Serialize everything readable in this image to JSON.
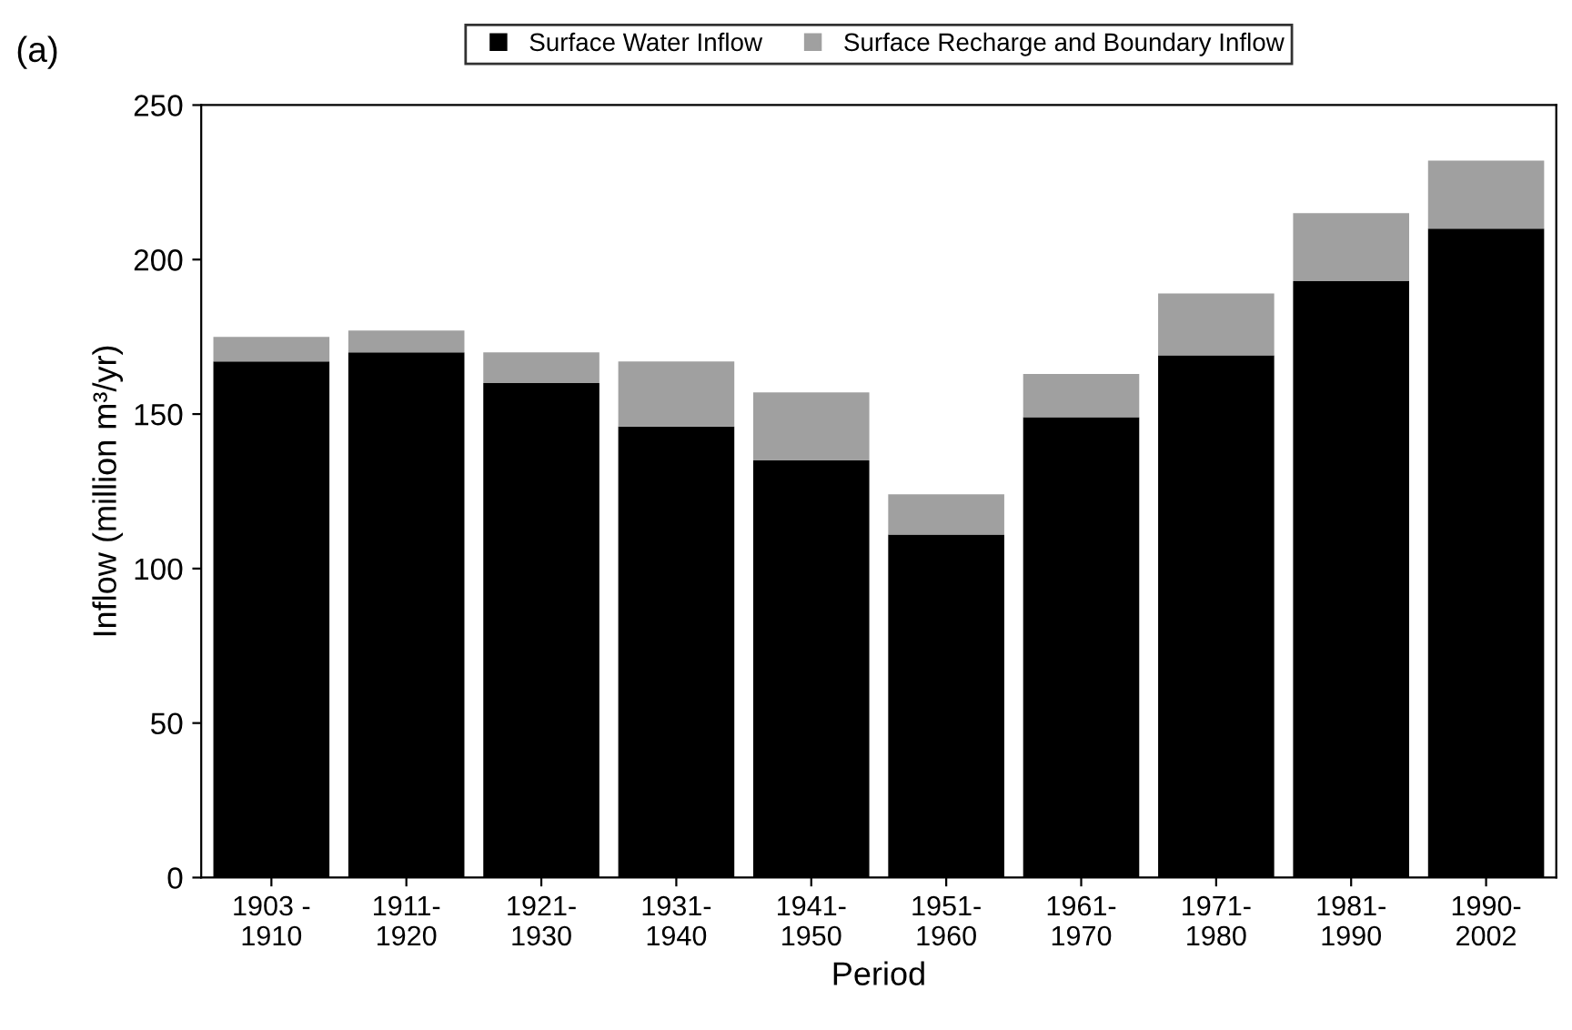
{
  "chart_data": {
    "type": "bar",
    "stacked": true,
    "xlabel": "Period",
    "ylabel": "Inflow (million m³/yr)",
    "annotations": [
      "(a)"
    ],
    "categories": [
      "1903 -\n1910",
      "1911-\n1920",
      "1921-\n1930",
      "1931-\n1940",
      "1941-\n1950",
      "1951-\n1960",
      "1961-\n1970",
      "1971-\n1980",
      "1981-\n1990",
      "1990-\n2002"
    ],
    "series": [
      {
        "name": "Surface Water Inflow",
        "color": "#000000",
        "values": [
          167,
          170,
          160,
          146,
          135,
          111,
          149,
          169,
          193,
          210
        ]
      },
      {
        "name": "Surface Recharge and Boundary Inflow",
        "color": "#a0a0a0",
        "values": [
          8,
          7,
          10,
          21,
          22,
          13,
          14,
          20,
          22,
          22
        ]
      }
    ],
    "ylim": [
      0,
      250
    ],
    "yticks": [
      0,
      50,
      100,
      150,
      200,
      250
    ],
    "grid": false,
    "legend": "top"
  }
}
